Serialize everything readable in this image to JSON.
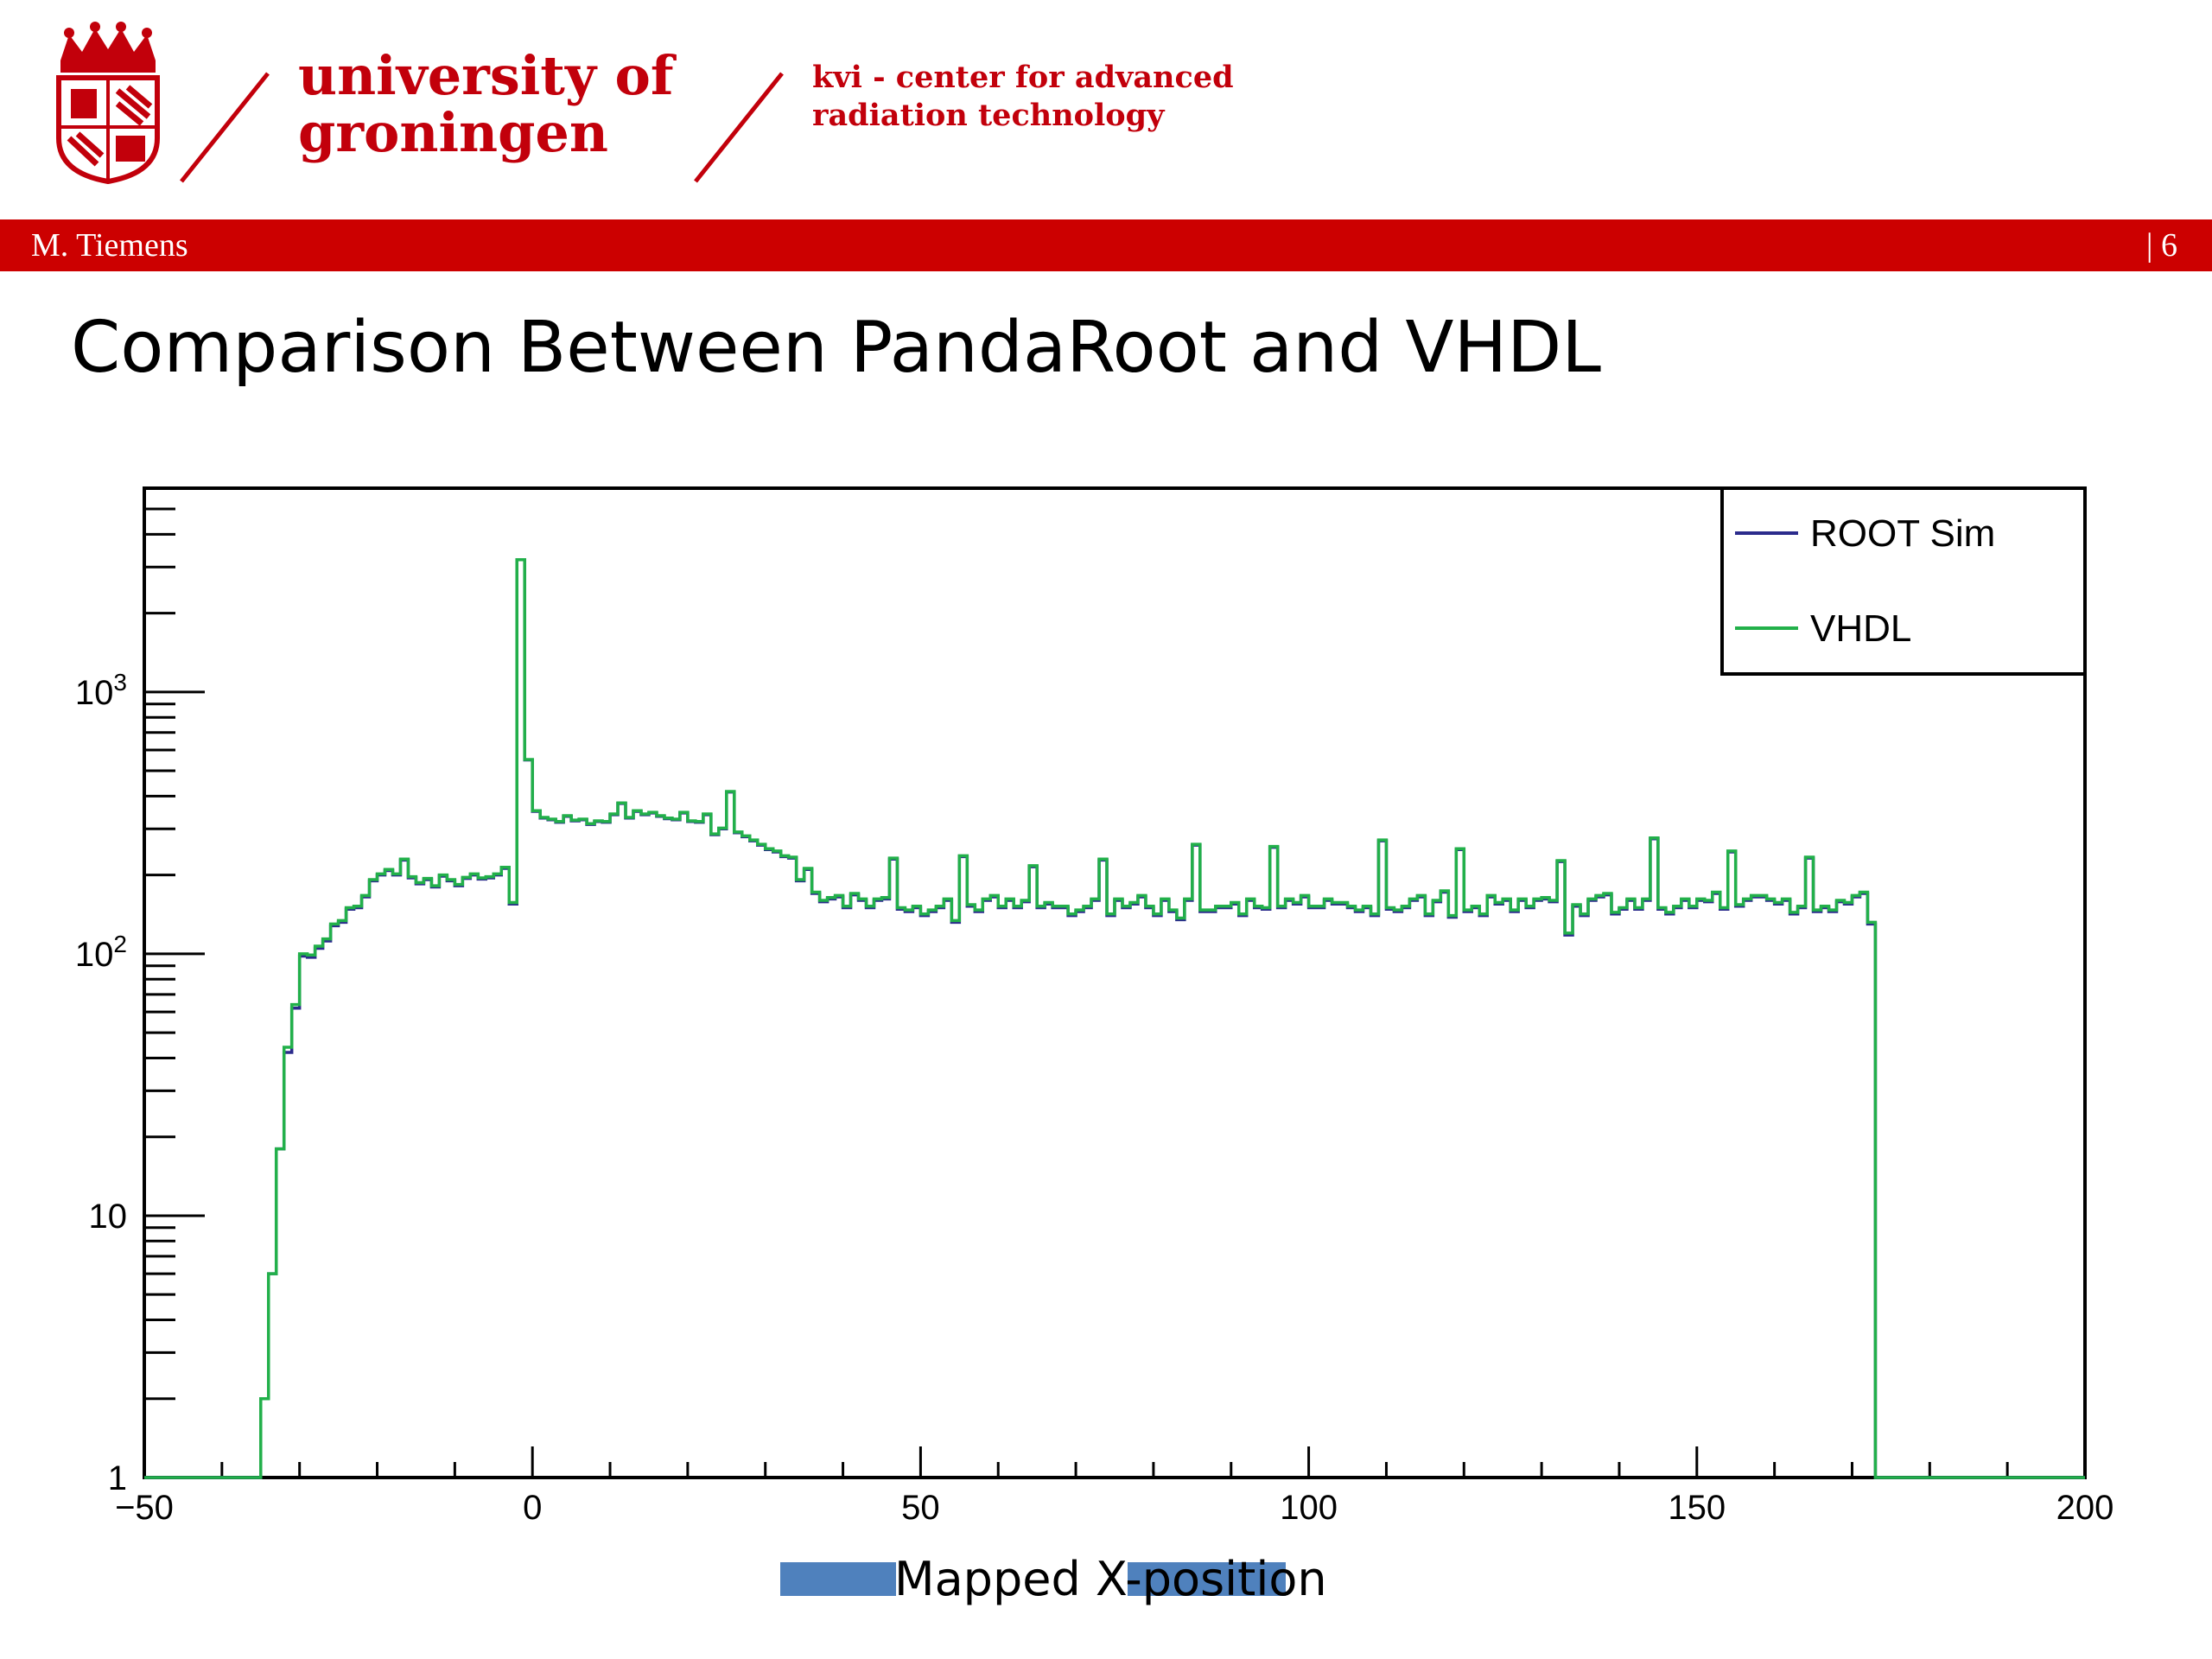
{
  "header": {
    "university": "university of\ngroningen",
    "institute": "kvi - center for advanced\nradiation technology",
    "author": "M. Tiemens",
    "page": "| 6"
  },
  "slide": {
    "title": "Comparison Between PandaRoot and VHDL"
  },
  "colors": {
    "brand_red": "#cc0000",
    "root_sim": "#2b2b8c",
    "vhdl": "#22b04a",
    "label_highlight": "#4f81bd"
  },
  "chart_data": {
    "type": "line",
    "style": "step-histogram",
    "title": "",
    "xlabel": "Mapped X-position",
    "ylabel": "",
    "xlim": [
      -50,
      200
    ],
    "ylim": [
      1,
      6000
    ],
    "yscale": "log",
    "x_ticks": [
      -50,
      0,
      50,
      100,
      150,
      200
    ],
    "x_tick_labels": [
      "−50",
      "0",
      "50",
      "100",
      "150",
      "200"
    ],
    "y_ticks": [
      1,
      10,
      100,
      1000
    ],
    "y_tick_labels": [
      "1",
      "10",
      "10^2",
      "10^3"
    ],
    "legend_position": "top-right",
    "bin_width": 1,
    "x_start": -35,
    "series": [
      {
        "name": "ROOT Sim",
        "values": [
          2,
          6,
          18,
          42,
          62,
          98,
          97,
          105,
          112,
          128,
          132,
          148,
          150,
          165,
          190,
          200,
          208,
          200,
          228,
          195,
          185,
          192,
          180,
          198,
          190,
          182,
          194,
          200,
          193,
          195,
          200,
          212,
          155,
          3200,
          550,
          350,
          330,
          325,
          318,
          335,
          322,
          325,
          312,
          320,
          318,
          340,
          375,
          330,
          350,
          340,
          345,
          335,
          328,
          325,
          345,
          320,
          318,
          340,
          285,
          300,
          415,
          290,
          280,
          270,
          260,
          250,
          245,
          235,
          232,
          190,
          210,
          170,
          158,
          162,
          165,
          150,
          168,
          160,
          150,
          160,
          162,
          230,
          148,
          145,
          150,
          140,
          145,
          150,
          160,
          132,
          235,
          152,
          145,
          160,
          165,
          150,
          160,
          150,
          158,
          215,
          150,
          155,
          150,
          150,
          140,
          145,
          150,
          160,
          228,
          140,
          160,
          150,
          155,
          165,
          150,
          140,
          160,
          145,
          135,
          160,
          260,
          145,
          145,
          150,
          150,
          155,
          140,
          160,
          150,
          148,
          255,
          150,
          160,
          155,
          165,
          150,
          150,
          160,
          155,
          155,
          150,
          145,
          150,
          140,
          270,
          148,
          145,
          150,
          160,
          165,
          140,
          158,
          172,
          138,
          250,
          145,
          150,
          140,
          165,
          155,
          160,
          145,
          160,
          150,
          160,
          162,
          158,
          225,
          118,
          152,
          140,
          160,
          165,
          168,
          142,
          148,
          160,
          148,
          160,
          275,
          148,
          142,
          150,
          160,
          150,
          160,
          158,
          170,
          148,
          245,
          152,
          160,
          165,
          165,
          160,
          155,
          160,
          142,
          150,
          232,
          145,
          150,
          145,
          158,
          155,
          165,
          170,
          130
        ],
        "values_note": ""
      },
      {
        "name": "VHDL",
        "values": [
          2,
          6,
          18,
          44,
          64,
          100,
          99,
          107,
          114,
          130,
          134,
          150,
          152,
          167,
          192,
          202,
          210,
          202,
          230,
          197,
          187,
          194,
          182,
          200,
          192,
          184,
          196,
          202,
          195,
          197,
          202,
          214,
          157,
          3200,
          552,
          352,
          332,
          327,
          320,
          337,
          324,
          327,
          314,
          322,
          320,
          342,
          377,
          332,
          352,
          342,
          347,
          337,
          330,
          327,
          347,
          322,
          320,
          342,
          287,
          302,
          417,
          292,
          282,
          272,
          262,
          252,
          247,
          237,
          234,
          192,
          212,
          172,
          160,
          164,
          167,
          152,
          170,
          162,
          152,
          162,
          164,
          232,
          150,
          147,
          152,
          142,
          147,
          152,
          162,
          134,
          237,
          154,
          147,
          162,
          167,
          152,
          162,
          152,
          160,
          217,
          152,
          157,
          152,
          152,
          142,
          147,
          152,
          162,
          230,
          142,
          162,
          152,
          157,
          167,
          152,
          142,
          162,
          147,
          137,
          162,
          262,
          147,
          147,
          152,
          152,
          157,
          142,
          162,
          152,
          150,
          257,
          152,
          162,
          157,
          167,
          152,
          152,
          162,
          157,
          157,
          152,
          147,
          152,
          142,
          272,
          150,
          147,
          152,
          162,
          167,
          142,
          160,
          174,
          140,
          252,
          147,
          152,
          142,
          167,
          157,
          162,
          147,
          162,
          152,
          162,
          164,
          160,
          227,
          120,
          154,
          142,
          162,
          167,
          170,
          144,
          150,
          162,
          150,
          162,
          277,
          150,
          144,
          152,
          162,
          152,
          162,
          160,
          172,
          150,
          247,
          154,
          162,
          167,
          167,
          162,
          157,
          162,
          144,
          152,
          234,
          147,
          152,
          147,
          160,
          157,
          167,
          172,
          132
        ]
      }
    ]
  }
}
